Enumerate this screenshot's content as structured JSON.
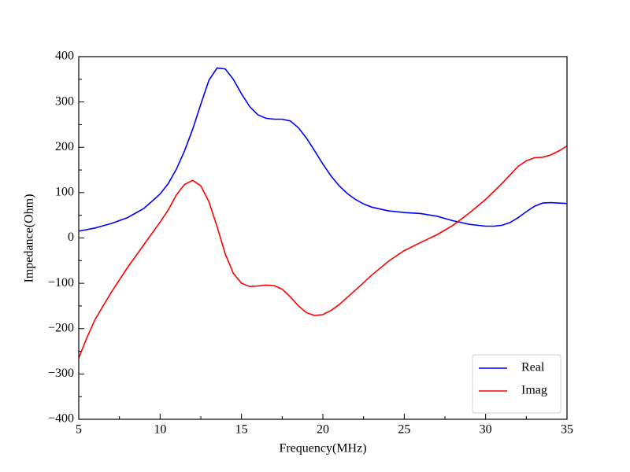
{
  "chart_data": {
    "type": "line",
    "xlabel": "Frequency(MHz)",
    "ylabel": "Impedance(Ohm)",
    "xlim": [
      5,
      35
    ],
    "ylim": [
      -400,
      400
    ],
    "xticks": [
      5,
      10,
      15,
      20,
      25,
      30,
      35
    ],
    "xminorticks": [
      7.5,
      12.5,
      17.5,
      22.5,
      27.5,
      32.5
    ],
    "yticks": [
      {
        "value": -400,
        "label": "−400"
      },
      {
        "value": -300,
        "label": "−300"
      },
      {
        "value": -200,
        "label": "−200"
      },
      {
        "value": -100,
        "label": "−100"
      },
      0,
      100,
      200,
      300,
      400
    ],
    "yminorticks": [
      -350,
      -250,
      -150,
      -50,
      50,
      150,
      250,
      350
    ],
    "legend": "lower right",
    "grid": false,
    "series": [
      {
        "name": "Real",
        "color": "#0000ff",
        "x": [
          5,
          6,
          7,
          8,
          9,
          10,
          10.5,
          11,
          11.5,
          12,
          12.5,
          13,
          13.5,
          14,
          14.5,
          15,
          15.5,
          16,
          16.5,
          17,
          17.5,
          18,
          18.5,
          19,
          19.5,
          20,
          20.5,
          21,
          21.5,
          22,
          22.5,
          23,
          24,
          25,
          26,
          27,
          28,
          29,
          30,
          30.5,
          31,
          31.5,
          32,
          32.5,
          33,
          33.5,
          34,
          35
        ],
        "values": [
          15,
          22,
          32,
          45,
          65,
          97,
          120,
          152,
          192,
          240,
          295,
          348,
          375,
          373,
          350,
          318,
          290,
          272,
          264,
          262,
          262,
          258,
          243,
          220,
          192,
          163,
          137,
          115,
          98,
          85,
          75,
          68,
          60,
          56,
          54,
          48,
          38,
          30,
          26,
          26,
          28,
          34,
          45,
          58,
          70,
          77,
          78,
          76
        ]
      },
      {
        "name": "Imag",
        "color": "#ff0000",
        "x": [
          5,
          5.5,
          6,
          7,
          8,
          9,
          10,
          10.5,
          11,
          11.5,
          12,
          12.5,
          13,
          13.5,
          14,
          14.5,
          15,
          15.5,
          16,
          16.5,
          17,
          17.5,
          18,
          18.5,
          19,
          19.5,
          20,
          20.5,
          21,
          22,
          23,
          24,
          25,
          26,
          27,
          28,
          29,
          30,
          31,
          32,
          32.5,
          33,
          33.5,
          34,
          34.5,
          35
        ],
        "values": [
          -265,
          -220,
          -180,
          -120,
          -65,
          -15,
          35,
          62,
          95,
          118,
          127,
          115,
          80,
          25,
          -35,
          -78,
          -100,
          -107,
          -106,
          -104,
          -105,
          -113,
          -130,
          -150,
          -165,
          -171,
          -169,
          -160,
          -147,
          -115,
          -82,
          -52,
          -28,
          -10,
          7,
          28,
          55,
          85,
          120,
          158,
          170,
          177,
          178,
          183,
          192,
          203
        ]
      }
    ]
  }
}
